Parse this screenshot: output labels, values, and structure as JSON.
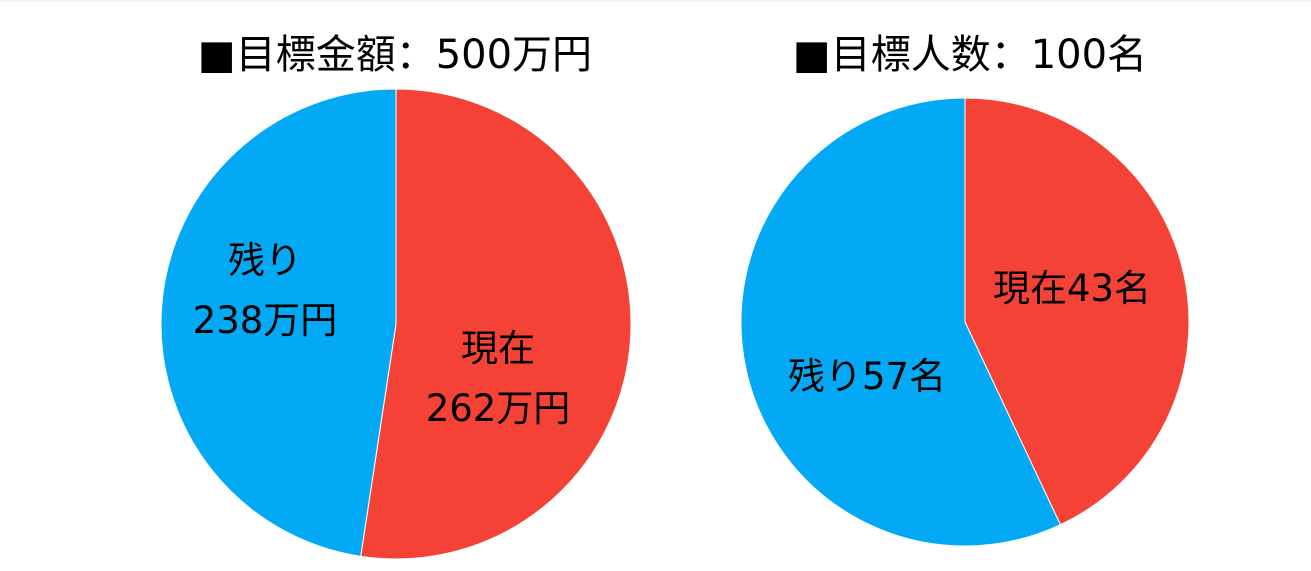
{
  "chart_data": [
    {
      "type": "pie",
      "title": "■目標金額：500万円",
      "categories": [
        "現在",
        "残り"
      ],
      "values": [
        262,
        238
      ],
      "value_labels": [
        "262万円",
        "238万円"
      ],
      "colors": [
        "#f44336",
        "#03a9f4"
      ]
    },
    {
      "type": "pie",
      "title": "■目標人数：100名",
      "categories": [
        "現在",
        "残り"
      ],
      "values": [
        43,
        57
      ],
      "value_labels": [
        "43名",
        "57名"
      ],
      "colors": [
        "#f44336",
        "#03a9f4"
      ]
    }
  ]
}
